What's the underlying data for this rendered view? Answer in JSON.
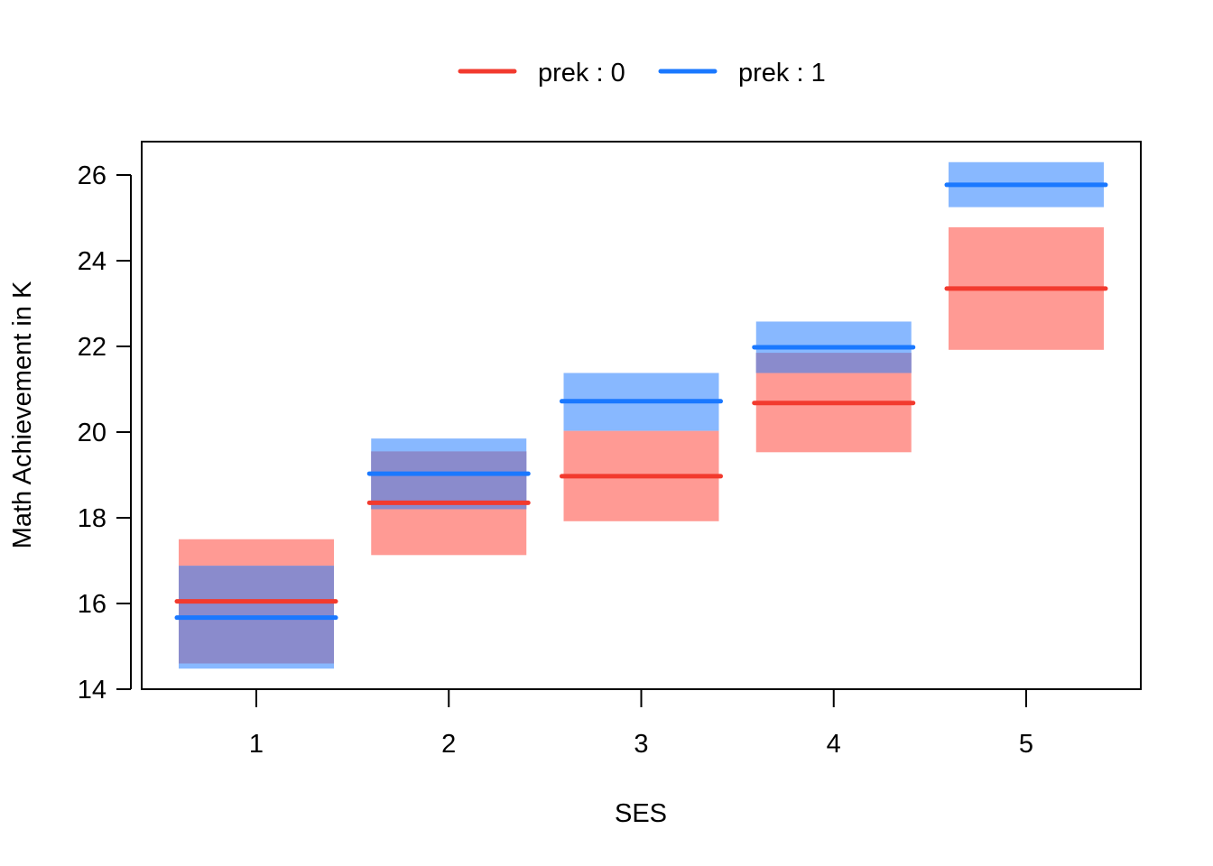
{
  "chart_data": {
    "type": "bar",
    "subtype": "interval-plot",
    "categories": [
      "1",
      "2",
      "3",
      "4",
      "5"
    ],
    "xlabel": "SES",
    "ylabel": "Math Achievement in K",
    "ylim": [
      14,
      26.8
    ],
    "yticks": [
      "14",
      "16",
      "18",
      "20",
      "22",
      "24",
      "26"
    ],
    "legend_position": "top",
    "series": [
      {
        "name": "prek : 0",
        "color": "#f23a2e",
        "band_color": "#ff9a94",
        "means": [
          16.05,
          18.35,
          18.97,
          20.68,
          23.35
        ],
        "lower": [
          14.6,
          17.13,
          17.92,
          19.53,
          21.92
        ],
        "upper": [
          17.5,
          19.55,
          20.03,
          21.85,
          24.78
        ]
      },
      {
        "name": "prek : 1",
        "color": "#1a78ff",
        "band_color": "#88b8ff",
        "means": [
          15.67,
          19.03,
          20.72,
          21.98,
          25.77
        ],
        "lower": [
          14.48,
          18.2,
          20.03,
          21.38,
          25.25
        ],
        "upper": [
          16.88,
          19.85,
          21.38,
          22.58,
          26.3
        ]
      }
    ],
    "overlap_color": "#8a8bcc"
  }
}
